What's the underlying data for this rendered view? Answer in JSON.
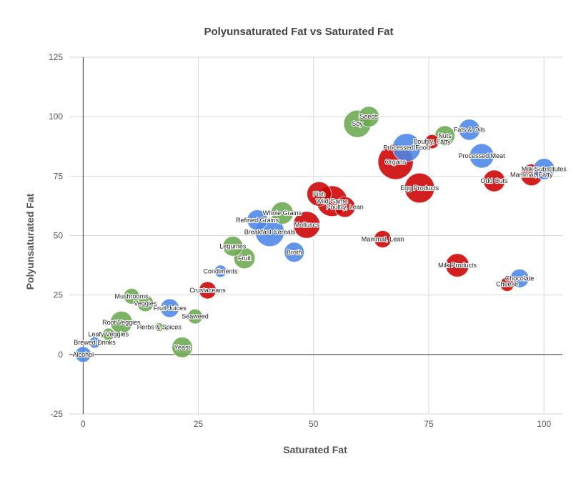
{
  "chart_data": {
    "type": "scatter",
    "title": "Polyunsaturated Fat vs Saturated Fat",
    "xlabel": "Saturated Fat",
    "ylabel": "Polyunsaturated Fat",
    "xlim": [
      -3,
      104
    ],
    "ylim": [
      -25,
      125
    ],
    "xticks": [
      "0",
      "25",
      "50",
      "75",
      "100"
    ],
    "yticks": [
      "-25",
      "0",
      "25",
      "50",
      "75",
      "100",
      "125"
    ],
    "grid": true,
    "legend": "none",
    "colors": {
      "blue": "#4a86e8",
      "green": "#6aa84f",
      "red": "#cc0000"
    },
    "points": [
      {
        "label": "Alcohol",
        "x": 0,
        "y": 0,
        "size": 1.0,
        "color": "blue"
      },
      {
        "label": "Brewed Drinks",
        "x": 2.5,
        "y": 5,
        "size": 0.5,
        "color": "blue"
      },
      {
        "label": "Leafy Veggies",
        "x": 5.5,
        "y": 8.5,
        "size": 0.6,
        "color": "green"
      },
      {
        "label": "Root Veggies",
        "x": 8.3,
        "y": 13.5,
        "size": 2.0,
        "color": "green"
      },
      {
        "label": "Mushrooms",
        "x": 10.5,
        "y": 24.5,
        "size": 1.0,
        "color": "green"
      },
      {
        "label": "Veggies",
        "x": 13.5,
        "y": 21.5,
        "size": 1.1,
        "color": "green"
      },
      {
        "label": "Herbs & Spices",
        "x": 16.5,
        "y": 11.5,
        "size": 0.3,
        "color": "green"
      },
      {
        "label": "Fruit Juices",
        "x": 18.8,
        "y": 19.5,
        "size": 1.4,
        "color": "blue"
      },
      {
        "label": "Yeast",
        "x": 21.5,
        "y": 3,
        "size": 1.7,
        "color": "green"
      },
      {
        "label": "Seaweed",
        "x": 24.3,
        "y": 16,
        "size": 0.9,
        "color": "green"
      },
      {
        "label": "Crustaceans",
        "x": 27,
        "y": 27,
        "size": 1.2,
        "color": "red"
      },
      {
        "label": "Condiments",
        "x": 29.8,
        "y": 35,
        "size": 0.6,
        "color": "blue"
      },
      {
        "label": "Legumes",
        "x": 32.5,
        "y": 45.5,
        "size": 1.6,
        "color": "green"
      },
      {
        "label": "Fruit",
        "x": 35,
        "y": 40.5,
        "size": 1.8,
        "color": "green"
      },
      {
        "label": "Refined Grains",
        "x": 37.8,
        "y": 56.5,
        "size": 1.7,
        "color": "blue"
      },
      {
        "label": "Breakfast Cereals",
        "x": 40.5,
        "y": 51.5,
        "size": 3.4,
        "color": "blue"
      },
      {
        "label": "Whole Grains",
        "x": 43.2,
        "y": 59.5,
        "size": 2.0,
        "color": "green"
      },
      {
        "label": "Broth",
        "x": 45.8,
        "y": 43,
        "size": 1.6,
        "color": "blue"
      },
      {
        "label": "Molluscs",
        "x": 48.5,
        "y": 54.5,
        "size": 2.9,
        "color": "red"
      },
      {
        "label": "Fish",
        "x": 51.2,
        "y": 67.5,
        "size": 2.4,
        "color": "red"
      },
      {
        "label": "Wild Game",
        "x": 54,
        "y": 64.5,
        "size": 3.8,
        "color": "red"
      },
      {
        "label": "Poultry, Lean",
        "x": 56.8,
        "y": 62,
        "size": 1.7,
        "color": "red"
      },
      {
        "label": "Soy",
        "x": 59.5,
        "y": 97,
        "size": 3.0,
        "color": "green"
      },
      {
        "label": "Seeds",
        "x": 62,
        "y": 100,
        "size": 1.7,
        "color": "green"
      },
      {
        "label": "Mammal, Lean",
        "x": 65,
        "y": 48.5,
        "size": 1.2,
        "color": "red"
      },
      {
        "label": "Organs",
        "x": 67.8,
        "y": 81,
        "size": 5.0,
        "color": "red"
      },
      {
        "label": "Processed Food",
        "x": 70.2,
        "y": 87,
        "size": 3.2,
        "color": "blue"
      },
      {
        "label": "Egg Products",
        "x": 73,
        "y": 70,
        "size": 3.6,
        "color": "red"
      },
      {
        "label": "Poultry, Fatty",
        "x": 75.7,
        "y": 89.5,
        "size": 0.8,
        "color": "red"
      },
      {
        "label": "Nuts",
        "x": 78.5,
        "y": 92,
        "size": 1.6,
        "color": "green"
      },
      {
        "label": "Milk Products",
        "x": 81.2,
        "y": 37.5,
        "size": 2.2,
        "color": "red"
      },
      {
        "label": "Fats & Oils",
        "x": 83.8,
        "y": 94.5,
        "size": 1.8,
        "color": "blue"
      },
      {
        "label": "Processed Meat",
        "x": 86.5,
        "y": 83.5,
        "size": 2.4,
        "color": "blue"
      },
      {
        "label": "Odd Cuts",
        "x": 89.2,
        "y": 73,
        "size": 1.9,
        "color": "red"
      },
      {
        "label": "Cheese",
        "x": 92,
        "y": 29.5,
        "size": 0.8,
        "color": "red"
      },
      {
        "label": "Chocolate",
        "x": 94.7,
        "y": 32,
        "size": 1.4,
        "color": "blue"
      },
      {
        "label": "Mammal, Fatty",
        "x": 97.3,
        "y": 75.5,
        "size": 1.9,
        "color": "red"
      },
      {
        "label": "Milk Substitutes",
        "x": 100,
        "y": 78,
        "size": 1.8,
        "color": "blue"
      }
    ]
  }
}
